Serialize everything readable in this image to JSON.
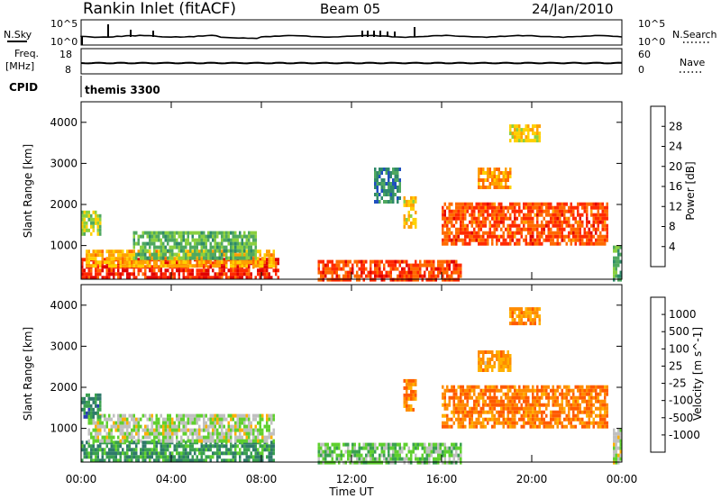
{
  "header": {
    "station": "Rankin Inlet (fitACF)",
    "beam": "Beam 05",
    "date": "24/Jan/2010"
  },
  "top_panels": {
    "noise": {
      "left_label": "N.Sky",
      "right_label": "N.Search",
      "left_ticks": [
        "10^5",
        "10^0"
      ],
      "right_ticks": [
        "10^5",
        "10^0"
      ]
    },
    "freq": {
      "left_label_1": "Freq.",
      "left_label_2": "[MHz]",
      "right_label": "Nave",
      "left_ticks": [
        "18",
        "8"
      ],
      "right_ticks": [
        "60",
        "0"
      ]
    },
    "cpid": {
      "label": "CPID",
      "value": "themis 3300"
    }
  },
  "colors": {
    "power_scale": [
      "#1a1aff",
      "#1f4fbf",
      "#2f8a6a",
      "#4fa860",
      "#8ad040",
      "#ffd000",
      "#ffa000",
      "#ff6a00",
      "#ff2a00",
      "#e00000"
    ],
    "velocity_scale": [
      "#ff0000",
      "#ff5a00",
      "#ff8c00",
      "#ffb000",
      "#c0c0c0",
      "#5fd02f",
      "#3aa050",
      "#2f7a6a",
      "#2a3fb0",
      "#1a1aff"
    ],
    "ground_scatter": "#b0b0b0"
  },
  "chart_data": [
    {
      "type": "heatmap",
      "title": "Power",
      "ylabel": "Slant Range [km]",
      "colorbar_label": "Power [dB]",
      "colorbar_ticks": [
        "4",
        "8",
        "12",
        "16",
        "20",
        "24",
        "28"
      ],
      "y_ticks": [
        "1000",
        "2000",
        "3000",
        "4000"
      ],
      "ylim": [
        180,
        4500
      ],
      "xlim_hours": [
        0,
        24
      ],
      "regions": [
        {
          "t0": 0.0,
          "t1": 8.8,
          "r0": 180,
          "r1": 700,
          "level": 0.88
        },
        {
          "t0": 0.2,
          "t1": 8.6,
          "r0": 500,
          "r1": 900,
          "level": 0.62
        },
        {
          "t0": 0.0,
          "t1": 0.9,
          "r0": 1300,
          "r1": 1850,
          "level": 0.45
        },
        {
          "t0": 2.3,
          "t1": 7.8,
          "r0": 700,
          "r1": 1350,
          "level": 0.38
        },
        {
          "t0": 10.5,
          "t1": 16.8,
          "r0": 180,
          "r1": 650,
          "level": 0.82
        },
        {
          "t0": 14.3,
          "t1": 14.9,
          "r0": 1450,
          "r1": 2200,
          "level": 0.58
        },
        {
          "t0": 16.0,
          "t1": 23.4,
          "r0": 1000,
          "r1": 2050,
          "level": 0.8
        },
        {
          "t0": 17.6,
          "t1": 19.1,
          "r0": 2400,
          "r1": 2900,
          "level": 0.68
        },
        {
          "t0": 19.0,
          "t1": 20.4,
          "r0": 3550,
          "r1": 3950,
          "level": 0.55
        },
        {
          "t0": 13.0,
          "t1": 14.2,
          "r0": 2100,
          "r1": 2900,
          "level": 0.25
        },
        {
          "t0": 23.6,
          "t1": 24.0,
          "r0": 180,
          "r1": 1000,
          "level": 0.35
        }
      ]
    },
    {
      "type": "heatmap",
      "title": "Velocity",
      "ylabel": "Slant Range [km]",
      "colorbar_label": "Velocity [m s^-1]",
      "colorbar_ticks": [
        "-1000",
        "-500",
        "-100",
        "-25",
        "25",
        "100",
        "500",
        "1000"
      ],
      "y_ticks": [
        "1000",
        "2000",
        "3000",
        "4000"
      ],
      "ylim": [
        180,
        4500
      ],
      "xlim_hours": [
        0,
        24
      ],
      "xlabel": "Time UT",
      "x_ticks": [
        "00:00",
        "04:00",
        "08:00",
        "12:00",
        "16:00",
        "20:00",
        "00:00"
      ],
      "regions": [
        {
          "t0": 0.0,
          "t1": 8.6,
          "r0": 180,
          "r1": 700,
          "level": 0.68
        },
        {
          "t0": 0.3,
          "t1": 8.6,
          "r0": 650,
          "r1": 1350,
          "level": 0.48
        },
        {
          "t0": 0.0,
          "t1": 0.9,
          "r0": 1300,
          "r1": 1850,
          "level": 0.72
        },
        {
          "t0": 10.5,
          "t1": 16.8,
          "r0": 180,
          "r1": 650,
          "level": 0.55
        },
        {
          "t0": 14.3,
          "t1": 14.9,
          "r0": 1450,
          "r1": 2200,
          "level": 0.25
        },
        {
          "t0": 16.0,
          "t1": 23.4,
          "r0": 1000,
          "r1": 2050,
          "level": 0.22
        },
        {
          "t0": 17.6,
          "t1": 19.1,
          "r0": 2400,
          "r1": 2900,
          "level": 0.3
        },
        {
          "t0": 19.0,
          "t1": 20.4,
          "r0": 3550,
          "r1": 3950,
          "level": 0.26
        },
        {
          "t0": 23.6,
          "t1": 24.0,
          "r0": 180,
          "r1": 1000,
          "level": 0.45
        }
      ]
    }
  ]
}
